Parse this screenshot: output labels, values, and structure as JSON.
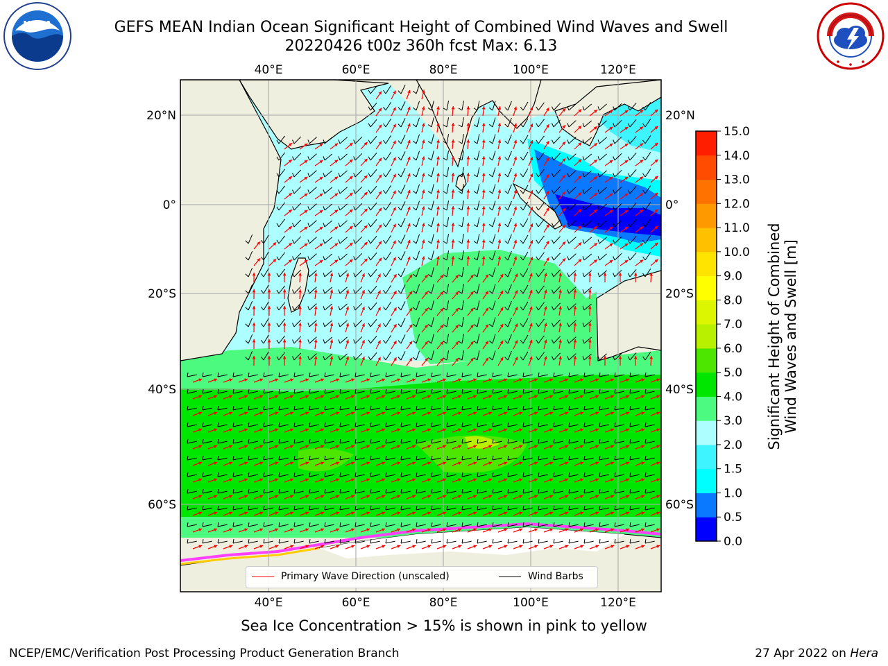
{
  "header": {
    "title_line1": "GEFS MEAN Indian Ocean Significant Height of Combined Wind Waves and Swell",
    "title_line2": "20220426 t00z 360h fcst   Max: 6.13"
  },
  "logos": {
    "left": {
      "icon": "noaa-logo",
      "text": "NOAA"
    },
    "right": {
      "icon": "national-weather-service-logo",
      "text": "NATIONAL WEATHER SERVICE"
    }
  },
  "map": {
    "lon_labels": [
      "40°E",
      "60°E",
      "80°E",
      "100°E",
      "120°E"
    ],
    "lon_values": [
      40,
      60,
      80,
      100,
      120
    ],
    "lat_labels": [
      "20°N",
      "0°",
      "20°S",
      "40°S",
      "60°S"
    ],
    "lat_values": [
      20,
      0,
      -20,
      -40,
      -60
    ],
    "lon_range": [
      20,
      130
    ],
    "lat_range": [
      -70,
      28
    ],
    "land_color": "#efefdf",
    "grid": true
  },
  "colorbar": {
    "label": "Significant Height of Combined Wind Waves and Swell [m]",
    "label_line1": "Significant Height of Combined",
    "label_line2": "Wind Waves and Swell [m]",
    "ticks": [
      "0.0",
      "0.5",
      "1.0",
      "1.5",
      "2.0",
      "3.0",
      "4.0",
      "5.0",
      "6.0",
      "7.0",
      "8.0",
      "9.0",
      "10.0",
      "11.0",
      "12.0",
      "13.0",
      "14.0",
      "15.0"
    ],
    "colors": [
      "#0000ff",
      "#0a78ff",
      "#00ffff",
      "#3ef4ff",
      "#adffff",
      "#4dfa80",
      "#00e600",
      "#4ce600",
      "#b8f000",
      "#dcf500",
      "#ffff00",
      "#ffe400",
      "#ffc000",
      "#ff9900",
      "#ff7200",
      "#ff4c00",
      "#ff1f00"
    ]
  },
  "legend": {
    "primary_wave": {
      "label": "Primary Wave Direction (unscaled)",
      "color": "#ff0000"
    },
    "wind_barbs": {
      "label": "Wind Barbs",
      "color": "#000000"
    }
  },
  "subtitle": "Sea Ice Concentration > 15% is shown in pink to yellow",
  "footer": {
    "left": "NCEP/EMC/Verification Post Processing Product Generation Branch",
    "right_prefix": "27 Apr 2022 on ",
    "right_host": "Hera"
  }
}
